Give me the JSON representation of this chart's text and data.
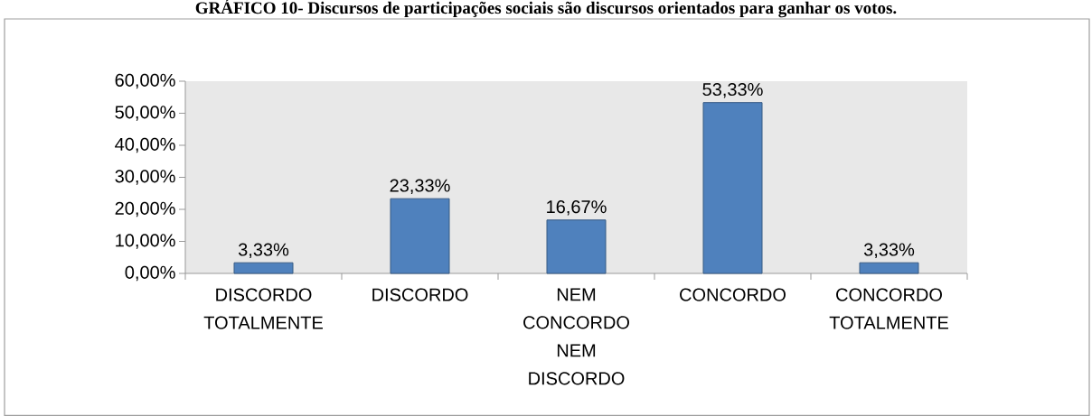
{
  "chart_data": {
    "type": "bar",
    "title": "GRÁFICO 10- Discursos de participações sociais são discursos orientados para ganhar os votos.",
    "categories": [
      "DISCORDO TOTALMENTE",
      "DISCORDO",
      "NEM CONCORDO NEM DISCORDO",
      "CONCORDO",
      "CONCORDO TOTALMENTE"
    ],
    "values": [
      3.33,
      23.33,
      16.67,
      53.33,
      3.33
    ],
    "value_labels": [
      "3,33%",
      "23,33%",
      "16,67%",
      "53,33%",
      "3,33%"
    ],
    "color": "#4f81bd",
    "ylim": [
      0,
      60
    ],
    "yticks": [
      {
        "value": 0,
        "label": "0,00%"
      },
      {
        "value": 10,
        "label": "10,00%"
      },
      {
        "value": 20,
        "label": "20,00%"
      },
      {
        "value": 30,
        "label": "30,00%"
      },
      {
        "value": 40,
        "label": "40,00%"
      },
      {
        "value": 50,
        "label": "50,00%"
      },
      {
        "value": 60,
        "label": "60,00%"
      }
    ]
  }
}
